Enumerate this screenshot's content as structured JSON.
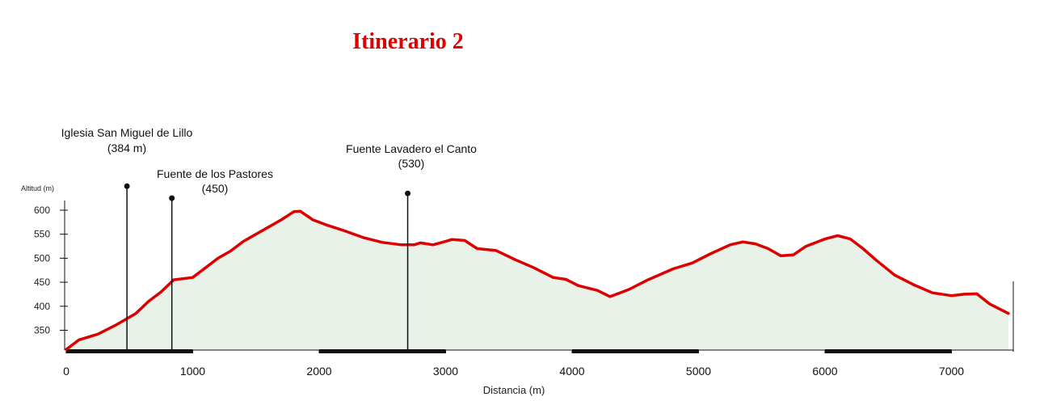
{
  "title": "Itinerario 2",
  "chart_data": {
    "type": "area",
    "title": "Itinerario 2",
    "xlabel": "Distancia (m)",
    "ylabel": "Altitud (m)",
    "xlim": [
      0,
      7500
    ],
    "ylim": [
      310,
      620
    ],
    "x_ticks": [
      0,
      1000,
      2000,
      3000,
      4000,
      5000,
      6000,
      7000
    ],
    "y_ticks": [
      350,
      400,
      450,
      500,
      550,
      600
    ],
    "colors": {
      "line": "#dd0000",
      "fill": "#e8f2e8",
      "axis": "#111111"
    },
    "series": [
      {
        "x": [
          0,
          100,
          250,
          400,
          550,
          650,
          750,
          850,
          1000,
          1100,
          1200,
          1300,
          1400,
          1500,
          1600,
          1700,
          1800,
          1850,
          1950,
          2050,
          2200,
          2350,
          2500,
          2650,
          2750,
          2800,
          2900,
          3000,
          3050,
          3150,
          3250,
          3400,
          3550,
          3700,
          3850,
          3950,
          4050,
          4200,
          4300,
          4450,
          4600,
          4800,
          4950,
          5100,
          5250,
          5350,
          5450,
          5550,
          5650,
          5750,
          5850,
          6000,
          6100,
          6200,
          6300,
          6400,
          6550,
          6700,
          6850,
          7000,
          7100,
          7200,
          7300,
          7450
        ],
        "y": [
          310,
          330,
          342,
          362,
          385,
          410,
          430,
          455,
          460,
          480,
          500,
          515,
          535,
          550,
          565,
          580,
          597,
          598,
          580,
          570,
          557,
          543,
          533,
          528,
          528,
          532,
          528,
          535,
          539,
          537,
          520,
          516,
          497,
          480,
          460,
          456,
          443,
          433,
          420,
          435,
          455,
          478,
          490,
          510,
          528,
          534,
          530,
          520,
          505,
          507,
          525,
          540,
          547,
          540,
          520,
          497,
          465,
          445,
          428,
          422,
          425,
          426,
          405,
          385
        ]
      }
    ],
    "annotations": [
      {
        "name": "Iglesia San Miguel de Lillo",
        "label": "(384 m)",
        "x": 480,
        "top": 650
      },
      {
        "name": "Fuente de los Pastores",
        "label": "(450)",
        "x": 835,
        "top": 625
      },
      {
        "name": "Fuente Lavadero el Canto",
        "label": "(530)",
        "x": 2700,
        "top": 635
      }
    ]
  }
}
